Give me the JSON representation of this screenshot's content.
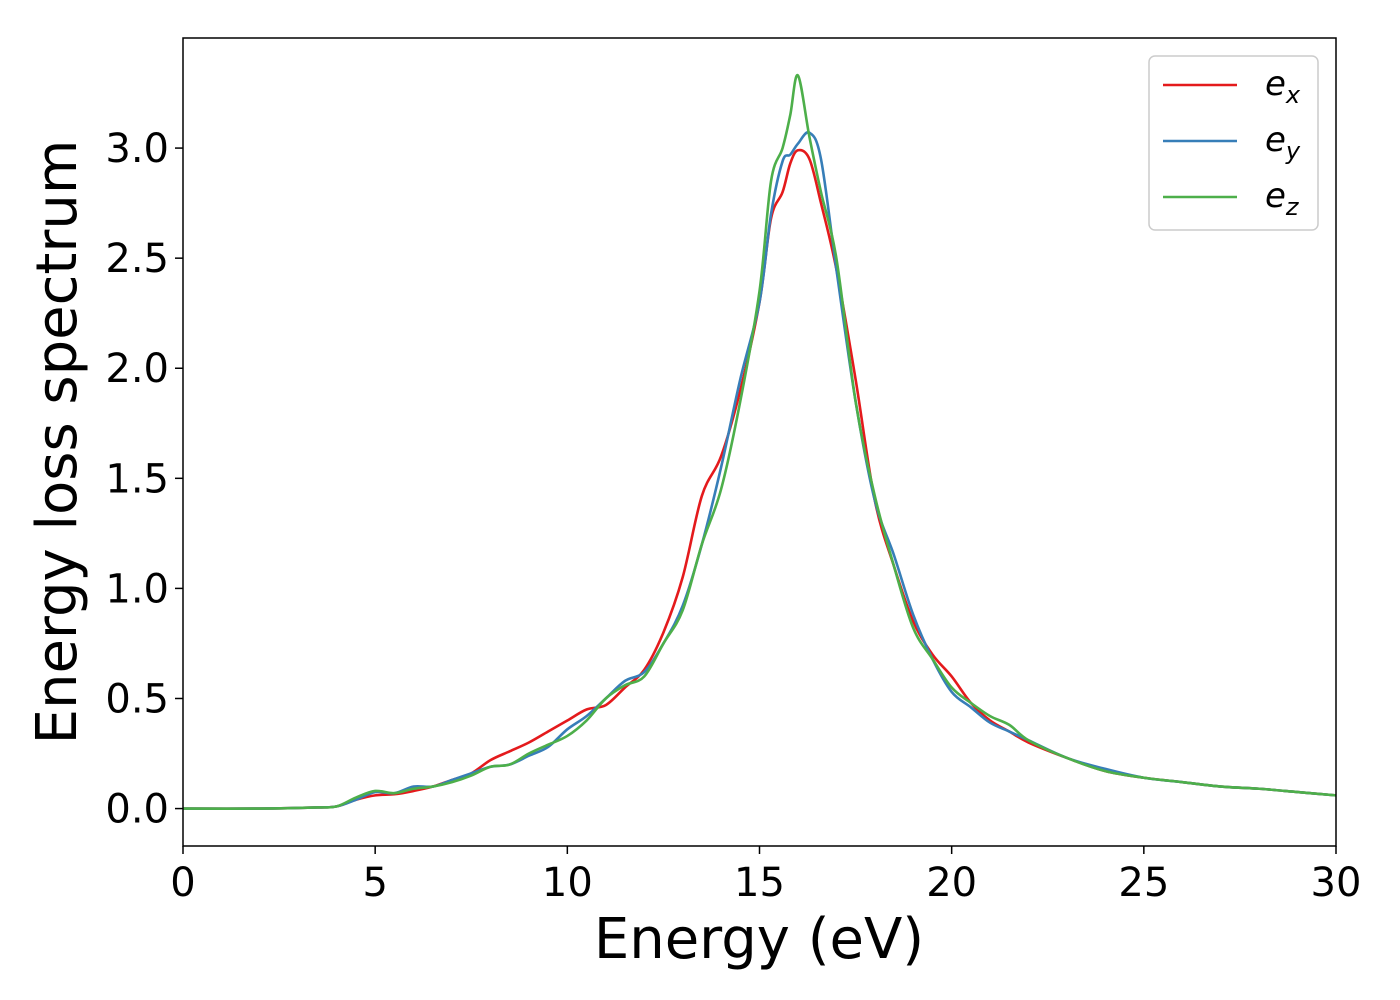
{
  "chart_data": {
    "type": "line",
    "title": "",
    "xlabel": "Energy (eV)",
    "ylabel": "Energy loss spectrum",
    "xlim": [
      0,
      30
    ],
    "ylim": [
      -0.17,
      3.5
    ],
    "xticks": [
      0,
      5,
      10,
      15,
      20,
      25,
      30
    ],
    "yticks": [
      0.0,
      0.5,
      1.0,
      1.5,
      2.0,
      2.5,
      3.0
    ],
    "xtick_labels": [
      "0",
      "5",
      "10",
      "15",
      "20",
      "25",
      "30"
    ],
    "ytick_labels": [
      "0.0",
      "0.5",
      "1.0",
      "1.5",
      "2.0",
      "2.5",
      "3.0"
    ],
    "grid": false,
    "legend_position": "top-right",
    "series": [
      {
        "name": "e_x",
        "label_main": "e",
        "label_sub": "x",
        "color": "#e41a1c",
        "x": [
          0,
          2,
          3.5,
          4.0,
          4.5,
          5.0,
          5.5,
          6.0,
          6.5,
          7.0,
          7.5,
          8.0,
          8.5,
          9.0,
          9.5,
          10.0,
          10.5,
          11.0,
          11.5,
          12.0,
          12.5,
          13.0,
          13.5,
          14.0,
          14.5,
          15.0,
          15.3,
          15.6,
          15.8,
          16.0,
          16.3,
          16.6,
          17.0,
          17.5,
          18.0,
          18.5,
          19.0,
          19.5,
          20.0,
          20.5,
          21.0,
          21.5,
          22.0,
          23.0,
          24.0,
          25.0,
          26.0,
          27.0,
          28.0,
          29.0,
          30.0
        ],
        "y": [
          0.0,
          0.0,
          0.005,
          0.01,
          0.04,
          0.06,
          0.065,
          0.08,
          0.1,
          0.13,
          0.16,
          0.22,
          0.26,
          0.3,
          0.35,
          0.4,
          0.45,
          0.47,
          0.55,
          0.63,
          0.8,
          1.05,
          1.42,
          1.6,
          1.9,
          2.3,
          2.68,
          2.8,
          2.93,
          2.99,
          2.95,
          2.75,
          2.45,
          1.95,
          1.4,
          1.1,
          0.85,
          0.7,
          0.6,
          0.48,
          0.4,
          0.35,
          0.3,
          0.23,
          0.17,
          0.14,
          0.12,
          0.1,
          0.09,
          0.075,
          0.06
        ]
      },
      {
        "name": "e_y",
        "label_main": "e",
        "label_sub": "y",
        "color": "#377eb8",
        "x": [
          0,
          2,
          3.5,
          4.0,
          4.5,
          5.0,
          5.5,
          6.0,
          6.5,
          7.0,
          7.5,
          8.0,
          8.5,
          9.0,
          9.5,
          10.0,
          10.5,
          11.0,
          11.5,
          12.0,
          12.5,
          13.0,
          13.5,
          14.0,
          14.5,
          15.0,
          15.3,
          15.6,
          15.8,
          16.0,
          16.3,
          16.6,
          17.0,
          17.5,
          18.0,
          18.5,
          19.0,
          19.5,
          20.0,
          20.5,
          21.0,
          21.5,
          22.0,
          23.0,
          24.0,
          25.0,
          26.0,
          27.0,
          28.0,
          29.0,
          30.0
        ],
        "y": [
          0.0,
          0.0,
          0.005,
          0.01,
          0.04,
          0.075,
          0.07,
          0.1,
          0.1,
          0.13,
          0.16,
          0.19,
          0.2,
          0.24,
          0.28,
          0.36,
          0.42,
          0.5,
          0.58,
          0.62,
          0.75,
          0.92,
          1.2,
          1.55,
          1.95,
          2.3,
          2.7,
          2.94,
          2.97,
          3.02,
          3.07,
          2.95,
          2.45,
          1.85,
          1.4,
          1.15,
          0.88,
          0.68,
          0.53,
          0.46,
          0.39,
          0.35,
          0.31,
          0.23,
          0.18,
          0.14,
          0.12,
          0.1,
          0.09,
          0.075,
          0.06
        ]
      },
      {
        "name": "e_z",
        "label_main": "e",
        "label_sub": "z",
        "color": "#4daf4a",
        "x": [
          0,
          2,
          3.5,
          4.0,
          4.5,
          5.0,
          5.5,
          6.0,
          6.5,
          7.0,
          7.5,
          8.0,
          8.5,
          9.0,
          9.5,
          10.0,
          10.5,
          11.0,
          11.5,
          12.0,
          12.5,
          13.0,
          13.5,
          14.0,
          14.5,
          15.0,
          15.3,
          15.6,
          15.8,
          16.0,
          16.3,
          16.6,
          17.0,
          17.5,
          18.0,
          18.5,
          19.0,
          19.5,
          20.0,
          20.5,
          21.0,
          21.5,
          22.0,
          23.0,
          24.0,
          25.0,
          26.0,
          27.0,
          28.0,
          29.0,
          30.0
        ],
        "y": [
          0.0,
          0.0,
          0.005,
          0.01,
          0.05,
          0.08,
          0.07,
          0.09,
          0.1,
          0.12,
          0.15,
          0.19,
          0.2,
          0.25,
          0.29,
          0.33,
          0.4,
          0.5,
          0.56,
          0.6,
          0.75,
          0.9,
          1.2,
          1.45,
          1.85,
          2.35,
          2.85,
          3.0,
          3.15,
          3.33,
          3.05,
          2.8,
          2.5,
          1.85,
          1.42,
          1.1,
          0.82,
          0.68,
          0.55,
          0.48,
          0.42,
          0.38,
          0.31,
          0.23,
          0.17,
          0.14,
          0.12,
          0.1,
          0.09,
          0.075,
          0.06
        ]
      }
    ]
  }
}
